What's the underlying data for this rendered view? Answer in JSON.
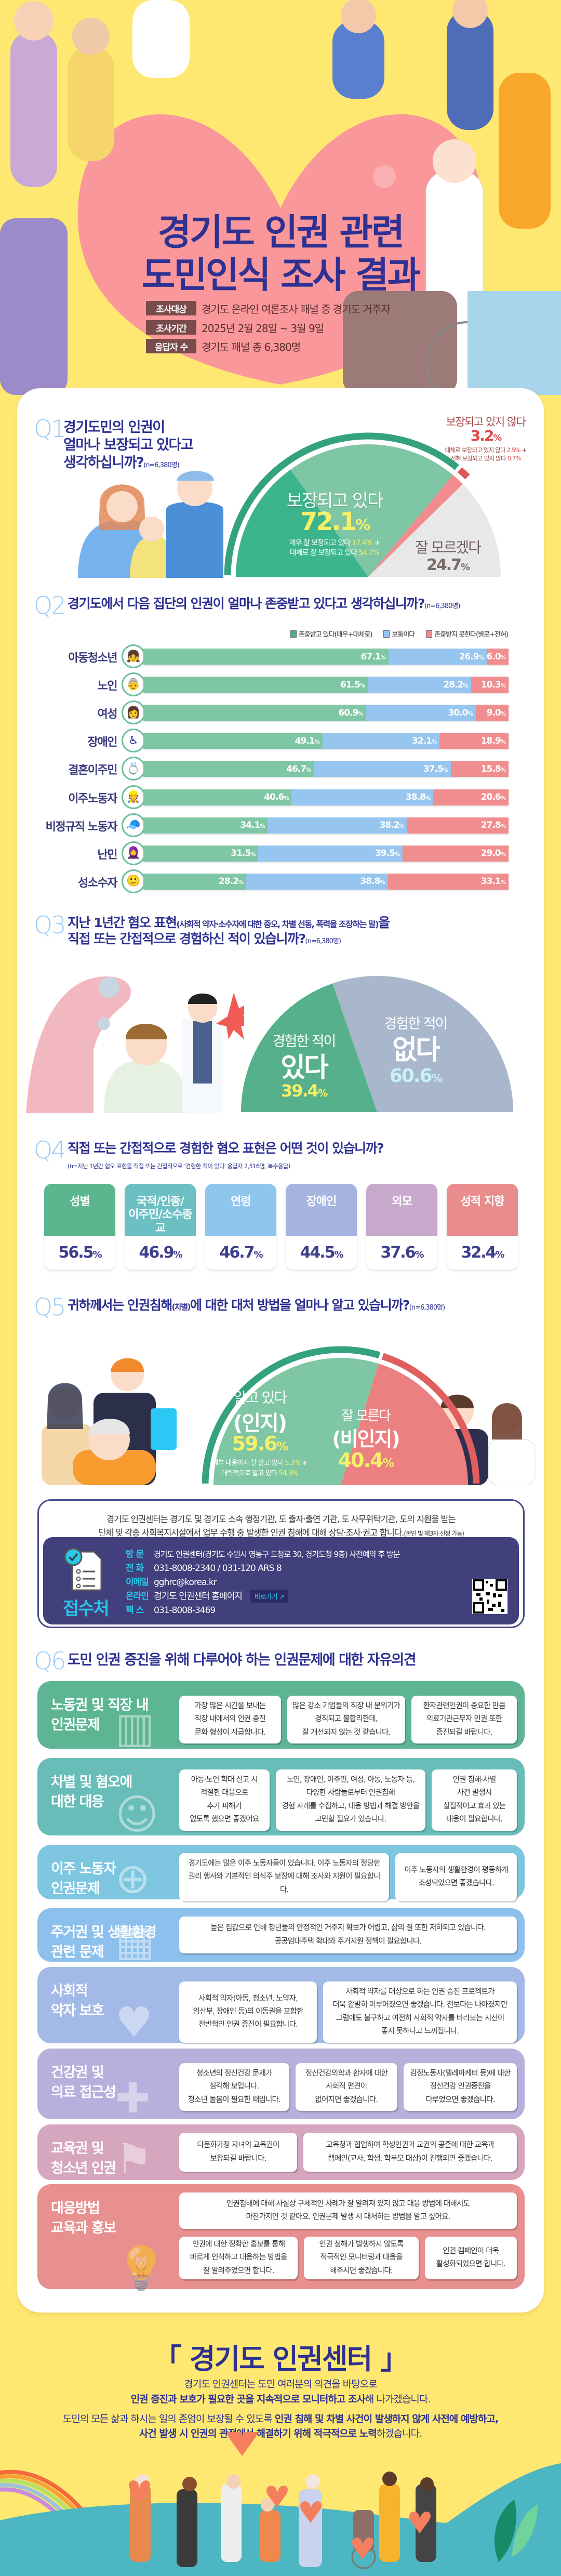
{
  "header": {
    "title_line1": "경기도 인권 관련",
    "title_line2": "도민인식 조사 결과",
    "survey": [
      {
        "label": "조사대상",
        "value": "경기도 온라인 여론조사 패널 중 경기도 거주자"
      },
      {
        "label": "조사기간",
        "value": "2025년 2월 28일 ~ 3월 9일"
      },
      {
        "label": "응답자 수",
        "value": "경기도 패널 총 6,380명"
      }
    ]
  },
  "q1": {
    "num": "Q1",
    "title_lines": [
      "경기도민의 인권이",
      "얼마나 보장되고 있다고",
      "생각하십니까?"
    ],
    "n": "(n=6,380명)",
    "protected_details": [
      "매우 잘 보장되고 있다",
      "17.4%",
      "대체로 잘 보장되고 있다",
      "54.7%"
    ],
    "not_protected_details": [
      "대체로 보장되고 있지 않다",
      "2.5%",
      "전혀 보장되고 있지 않다",
      "0.7%"
    ]
  },
  "q2": {
    "num": "Q2",
    "title": "경기도에서 다음 집단의 인권이 얼마나 존중받고 있다고 생각하십니까?",
    "n": "(n=6,380명)"
  },
  "q3": {
    "num": "Q3",
    "title_line1_bold": "지난 1년간 혐오 표현",
    "title_line1_paren": "(사회적 약자·소수자에 대한 증오, 차별 선동, 폭력을 조장하는 말)",
    "title_line1_end": "을",
    "title_line2": "직접 또는 간접적으로 경험하신 적이 있습니까?",
    "n": "(n=6,380명)",
    "label_prefix": "경험한 적이"
  },
  "q4": {
    "num": "Q4",
    "title": "직접 또는 간접적으로 경험한 혐오 표현은 어떤 것이 있습니까?",
    "n": "(n=지난 1년간 혐오 표현을 직접 또는 간접적으로 '경험한 적이 있다' 응답자 2,516명, 복수응답)"
  },
  "q5": {
    "num": "Q5",
    "title_a": "귀하께서는 인권침해",
    "title_paren": "(차별)",
    "title_b": "에 대한 대처 방법을 얼마나 알고 있습니까?",
    "n": "(n=6,380명)",
    "aware_sub": "(인지)",
    "unaware_sub": "(비인지)",
    "aware_details": [
      "세부 내용까지 잘 알고 있다",
      "5.3%",
      "대략적으로 알고 있다",
      "54.3%"
    ]
  },
  "info": {
    "line1": "경기도 인권센터는 경기도 및 경기도 소속 행정기관, 도 출자·출연 기관, 도 사무위탁기관, 도의 지원을 받는",
    "line2": "단체 및 각종 사회복지시설에서 업무 수행 중 발생한 인권 침해에 대해 상담·조사·권고 합니다.",
    "line2_note": "(본인 및 제3자 신청 가능)",
    "contact_title": "접수처",
    "rows": [
      {
        "label": "방 문",
        "value": "경기도 인권센터(경기도 수원시 영통구 도청로 30, 경기도청 9층) 사전예약 후 방문"
      },
      {
        "label": "전 화",
        "value": "031-8008-2340 / 031-120  ARS 8"
      },
      {
        "label": "이메일",
        "value": "gghrc@korea.kr"
      },
      {
        "label": "온라인",
        "value": "경기도 인권센터 홈페이지"
      },
      {
        "label": "팩 스",
        "value": "031-8008-3469"
      }
    ],
    "shortcut_button": "바로가기"
  },
  "q6": {
    "num": "Q6",
    "title": "도민 인권 증진을 위해 다루어야 하는 인권문제에 대한 자유의견",
    "sections": [
      {
        "label": "노동권 및 직장 내\n인권문제",
        "color": "#5DB594",
        "icon": "office-icon",
        "cards": [
          "가장 많은 시간을 보내는\n직장 내에서의 인권 증진\n문화 형성이 시급합니다.",
          "많은 강소 기업들의 직장 내 분위기가\n경직되고 불합리한데,\n잘 개선되지 않는 것 같습니다.",
          "환자관련인권이 중요한 만큼\n의료기관근무자 인권 또한\n증진되길 바랍니다."
        ]
      },
      {
        "label": "차별 및 혐오에\n대한 대응",
        "color": "#69BDB8",
        "icon": "people-icon",
        "cards": [
          "아동·노인 학대 신고 시\n적절한 대응으로\n추가 피해가\n없도록 했으면 좋겠어요",
          "노인, 장애인, 이주민, 여성, 아동, 노동자 등,\n다양한 사람들로부터 인권침해\n경험 사례를 수집하고, 대응 방법과 해결 방안을\n고민할 필요가 있습니다.",
          "인권 침해·차별\n사건 발생시\n실질적이고 효과 있는\n대응이 필요합니다."
        ]
      },
      {
        "label": "이주 노동자\n인권문제",
        "color": "#7EC6E0",
        "icon": "passport-icon",
        "cards": [
          "경기도에는 많은 이주 노동자들이 있습니다. 이주 노동자의 정당한\n권리 행사와 기본적인 의식주 보장에 대해 조사와 지원이 필요합니다.",
          "이주 노동자의 생활환경이 평등하게\n조성되었으면 좋겠습니다."
        ]
      },
      {
        "label": "주거권 및 생활환경\n관련 문제",
        "color": "#8DC0EC",
        "icon": "building-icon",
        "cards": [
          "높은 집값으로 인해 청년들의 안정적인 거주지 확보가 어렵고, 삶의 질 또한 저하되고 있습니다.\n공공임대주택 확대와 주거지원 정책이 필요합니다."
        ]
      },
      {
        "label": "사회적\n약자 보호",
        "color": "#A3B9E8",
        "icon": "hands-heart-icon",
        "cards": [
          "사회적 약자(아동, 청소년, 노약자,\n임산부, 장애인 등)의 이동권을 포함한\n전반적인 인권 증진이 필요합니다.",
          "사회적 약자를 대상으로 하는 인권 증진 프로젝트가\n더욱 활발히 이루어졌으면 좋겠습니다. 전보다는 나아졌지만\n그럼에도 불구하고 여전히 사회적 약자를 바라보는 시선이\n좋지 못하다고 느껴집니다."
        ]
      },
      {
        "label": "건강권 및\n의료 접근성",
        "color": "#B6B0DC",
        "icon": "hospital-icon",
        "cards": [
          "청소년의 정신건강 문제가\n심각해 보입니다.\n청소년 돌봄이 필요한 때입니다.",
          "정신건강의학과 환자에 대한\n사회적 편견이\n없어지면 좋겠습니다.",
          "감정노동자(텔레마케터 등)에 대한\n정신건강 인권증진을\n다루었으면 좋겠습니다."
        ]
      },
      {
        "label": "교육권 및\n청소년 인권",
        "color": "#D6A5BE",
        "icon": "school-icon",
        "cards": [
          "다문화가정 자녀의 교육권이\n보장되길 바랍니다.",
          "교육청과 협업하여 학생인권과 교권의 공존에 대한 교육과\n캠페인(교사, 학생, 학부모 대상)이 진행되면 좋겠습니다."
        ]
      },
      {
        "label": "대응방법\n교육과 홍보",
        "color": "#E88F90",
        "icon": "lightbulb-icon",
        "cards": [
          "인권침해에 대해 사실상 구체적인 사례가 잘 알려져 있지 않고 대응 방법에 대해서도\n마찬가지인 것 같아요. 인권문제 발생 시 대처하는 방법을 알고 싶어요.",
          "인권에 대한 정확한 홍보를 통해\n바르게 인식하고 대응하는 방법을\n잘 알려주었으면 합니다.",
          "인권 침해가 발생하지 않도록\n적극적인 모니터링과 대응을\n해주시면 좋겠습니다.",
          "인권 캠페인이 더욱\n활성화되었으면 합니다."
        ]
      }
    ]
  },
  "footer": {
    "title": "「 경기도 인권센터 」",
    "line1": "경기도 인권센터는 도민 여러분의 의견을 바탕으로",
    "line2_bold": "인권 증진과 보호가 필요한 곳을 지속적으로 모니터하고 조사",
    "line2_rest": "해 나가겠습니다.",
    "line3_rest": "도민의 모든 삶과 하시는 일의 존엄이 보장될 수 있도록 ",
    "line3_bold": "인권 침해 및 차별 사건이 발생하지 않게 사전에 예방하고,",
    "line4_bold": "사건 발생 시 인권의 관점에서 해결하기 위해 적극적으로 노력",
    "line4_rest": "하겠습니다."
  },
  "colors": {
    "navy": "#2E3192",
    "background": "#FFE872",
    "green": "#7FC6A4",
    "blue": "#96C5EF",
    "red": "#F08D8F",
    "gray": "#E6E6E6"
  },
  "chart_data": [
    {
      "type": "pie",
      "variant": "semicircle",
      "question": "Q1",
      "categories": [
        "보장되고 있다",
        "보장되고 있지 않다",
        "잘 모르겠다"
      ],
      "values": [
        72.1,
        3.2,
        24.7
      ],
      "colors": [
        "#7FC6A4",
        "#F08B8E",
        "#E8E8E8"
      ]
    },
    {
      "type": "bar",
      "stacked": true,
      "orientation": "horizontal",
      "question": "Q2",
      "categories": [
        "아동청소년",
        "노인",
        "여성",
        "장애인",
        "결혼이주민",
        "이주노동자",
        "비정규직 노동자",
        "난민",
        "성소수자"
      ],
      "series": [
        {
          "name": "존중받고 있다(매우+대체로)",
          "color": "#7FC6A4",
          "values": [
            67.1,
            61.5,
            60.9,
            49.1,
            46.7,
            40.6,
            34.1,
            31.5,
            28.2
          ]
        },
        {
          "name": "보통이다",
          "color": "#96C5EF",
          "values": [
            26.9,
            28.2,
            30.0,
            32.1,
            37.5,
            38.8,
            38.2,
            39.5,
            38.8
          ]
        },
        {
          "name": "존중받지 못한다(별로+전혀)",
          "color": "#F08D8F",
          "values": [
            6.0,
            10.3,
            9.0,
            18.9,
            15.8,
            20.6,
            27.8,
            29.0,
            33.1
          ]
        }
      ],
      "xlim": [
        0,
        100
      ],
      "legend": "top-right"
    },
    {
      "type": "pie",
      "variant": "semicircle",
      "question": "Q3",
      "categories": [
        "있다",
        "없다"
      ],
      "values": [
        39.4,
        60.6
      ],
      "colors": [
        "#57B08C",
        "#A8B7CB"
      ]
    },
    {
      "type": "bar",
      "question": "Q4",
      "categories": [
        "성별",
        "국적/인종/\n이주민/소수종교",
        "연령",
        "장애인",
        "외모",
        "성적 지향"
      ],
      "values": [
        56.5,
        46.9,
        46.7,
        44.5,
        37.6,
        32.4
      ],
      "colors": [
        "#5BB58F",
        "#6CC0C4",
        "#8FC6EE",
        "#A6B4E0",
        "#C7A9CB",
        "#E88C8E"
      ]
    },
    {
      "type": "pie",
      "variant": "semicircle",
      "question": "Q5",
      "categories": [
        "알고 있다",
        "잘 모른다"
      ],
      "values": [
        59.6,
        40.4
      ],
      "colors": [
        "#7FC6A4",
        "#EA8180"
      ]
    }
  ]
}
